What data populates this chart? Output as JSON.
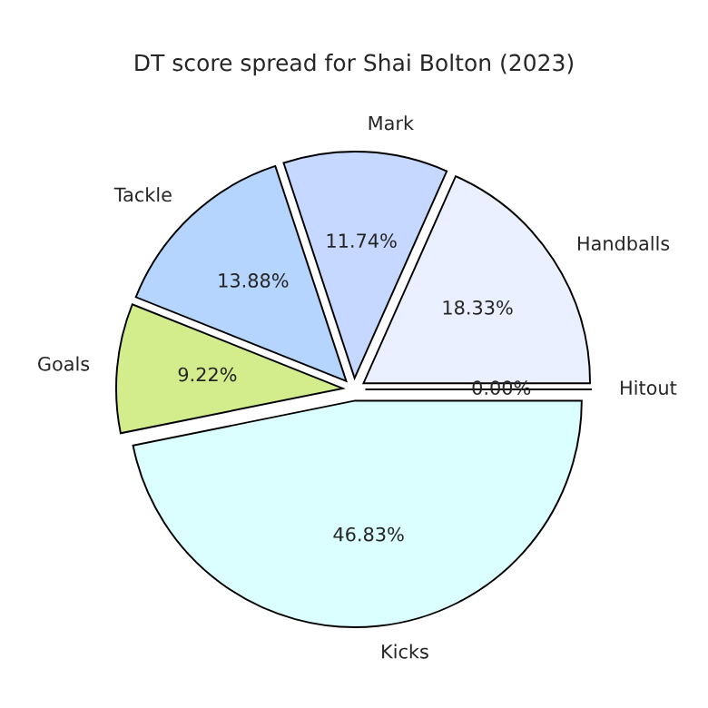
{
  "chart_data": {
    "type": "pie",
    "title": "DT score spread for Shai Bolton (2023)",
    "categories": [
      "Handballs",
      "Mark",
      "Tackle",
      "Goals",
      "Kicks",
      "Hitout"
    ],
    "values": [
      18.33,
      11.74,
      13.88,
      9.22,
      46.83,
      0.0
    ],
    "value_labels": [
      "18.33%",
      "11.74%",
      "13.88%",
      "9.22%",
      "46.83%",
      "0.00%"
    ],
    "colors": [
      "#eaf0ff",
      "#c6d8ff",
      "#b5d5ff",
      "#d3ec8c",
      "#dbffff",
      "#ffffff"
    ]
  }
}
